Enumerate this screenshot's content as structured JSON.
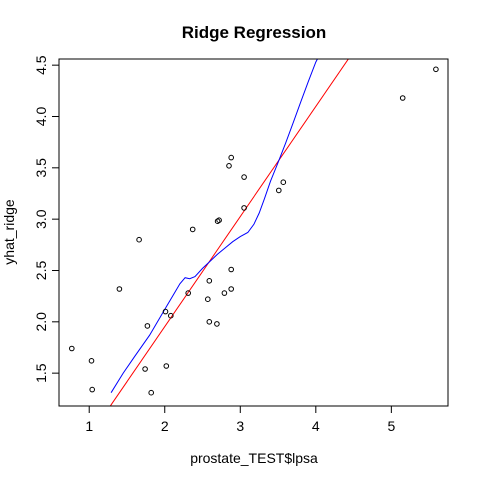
{
  "chart_data": {
    "type": "scatter",
    "title": "Ridge Regression",
    "xlabel": "prostate_TEST$lpsa",
    "ylabel": "yhat_ridge",
    "xlim": [
      0.6,
      5.75
    ],
    "ylim": [
      1.18,
      4.56
    ],
    "x_ticks": [
      1,
      2,
      3,
      4,
      5
    ],
    "y_ticks": [
      1.5,
      2.0,
      2.5,
      3.0,
      3.5,
      4.0,
      4.5
    ],
    "x_tick_labels": [
      "1",
      "2",
      "3",
      "4",
      "5"
    ],
    "y_tick_labels": [
      "1.5",
      "2.0",
      "2.5",
      "3.0",
      "3.5",
      "4.0",
      "4.5"
    ],
    "grid": false,
    "points": [
      {
        "x": 0.77,
        "y": 1.74
      },
      {
        "x": 1.03,
        "y": 1.62
      },
      {
        "x": 1.04,
        "y": 1.34
      },
      {
        "x": 1.4,
        "y": 2.32
      },
      {
        "x": 1.66,
        "y": 2.8
      },
      {
        "x": 1.74,
        "y": 1.54
      },
      {
        "x": 1.77,
        "y": 1.96
      },
      {
        "x": 1.82,
        "y": 1.31
      },
      {
        "x": 2.01,
        "y": 2.1
      },
      {
        "x": 2.02,
        "y": 1.57
      },
      {
        "x": 2.08,
        "y": 2.06
      },
      {
        "x": 2.31,
        "y": 2.28
      },
      {
        "x": 2.37,
        "y": 2.9
      },
      {
        "x": 2.57,
        "y": 2.22
      },
      {
        "x": 2.59,
        "y": 2.4
      },
      {
        "x": 2.59,
        "y": 2.0
      },
      {
        "x": 2.69,
        "y": 1.98
      },
      {
        "x": 2.7,
        "y": 2.98
      },
      {
        "x": 2.72,
        "y": 2.99
      },
      {
        "x": 2.79,
        "y": 2.28
      },
      {
        "x": 2.85,
        "y": 3.52
      },
      {
        "x": 2.88,
        "y": 3.6
      },
      {
        "x": 2.88,
        "y": 2.51
      },
      {
        "x": 2.88,
        "y": 2.32
      },
      {
        "x": 3.05,
        "y": 3.41
      },
      {
        "x": 3.05,
        "y": 3.11
      },
      {
        "x": 3.51,
        "y": 3.28
      },
      {
        "x": 3.57,
        "y": 3.36
      },
      {
        "x": 5.15,
        "y": 4.18
      },
      {
        "x": 5.59,
        "y": 4.46
      }
    ],
    "lines": [
      {
        "color": "#ff0000",
        "x": [
          1.27,
          4.45
        ],
        "y": [
          1.17,
          4.58
        ]
      },
      {
        "color": "#0000ff",
        "x": [
          1.29,
          1.45,
          1.6,
          1.8,
          2.0,
          2.12,
          2.2,
          2.27,
          2.33,
          2.4,
          2.5,
          2.6,
          2.7,
          2.8,
          2.9,
          3.0,
          3.1,
          3.18,
          3.25,
          3.32,
          3.4,
          3.5,
          3.6,
          3.7,
          3.8,
          3.9,
          4.0,
          4.05
        ],
        "y": [
          1.31,
          1.5,
          1.66,
          1.87,
          2.12,
          2.27,
          2.37,
          2.43,
          2.42,
          2.44,
          2.52,
          2.59,
          2.66,
          2.72,
          2.78,
          2.83,
          2.87,
          2.95,
          3.06,
          3.2,
          3.37,
          3.55,
          3.74,
          3.94,
          4.14,
          4.34,
          4.53,
          4.6
        ]
      }
    ]
  }
}
